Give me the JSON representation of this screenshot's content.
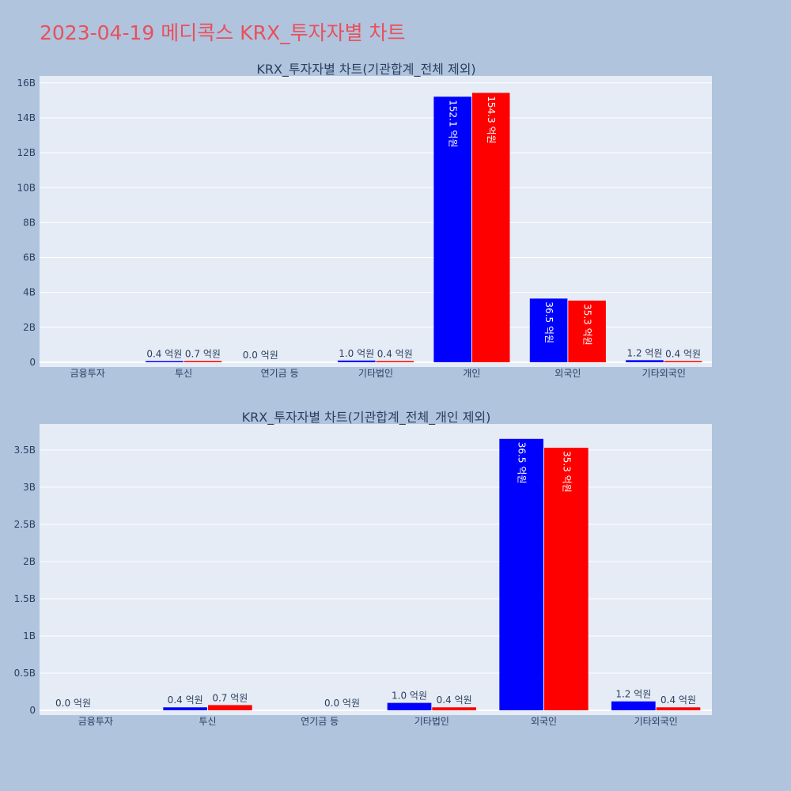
{
  "page_title": "2023-04-19 메디콕스 KRX_투자자별 차트",
  "colors": {
    "background": "#b0c4de",
    "plot_bg": "#e5ecf6",
    "title": "#e8505b",
    "series_a": "#0000ff",
    "series_b": "#ff0000"
  },
  "chart_data": [
    {
      "type": "bar",
      "title": "KRX_투자자별 차트(기관합계_전체 제외)",
      "categories": [
        "금융투자",
        "투신",
        "연기금 등",
        "기타법인",
        "개인",
        "외국인",
        "기타외국인"
      ],
      "series": [
        {
          "color": "#0000ff",
          "values": [
            0,
            40000000,
            0,
            100000000,
            15210000000,
            3650000000,
            120000000
          ],
          "labels": [
            "",
            "0.4 억원",
            "0.0 억원",
            "1.0 억원",
            "152.1 억원",
            "36.5 억원",
            "1.2 억원"
          ]
        },
        {
          "color": "#ff0000",
          "values": [
            0,
            70000000,
            0,
            40000000,
            15430000000,
            3530000000,
            40000000
          ],
          "labels": [
            "",
            "0.7 억원",
            "",
            "0.4 억원",
            "154.3 억원",
            "35.3 억원",
            "0.4 억원"
          ]
        }
      ],
      "ylim": [
        0,
        16400000000
      ],
      "yticks": [
        0,
        2000000000,
        4000000000,
        6000000000,
        8000000000,
        10000000000,
        12000000000,
        14000000000,
        16000000000
      ],
      "ytick_labels": [
        "0",
        "2B",
        "4B",
        "6B",
        "8B",
        "10B",
        "12B",
        "14B",
        "16B"
      ],
      "grid": true,
      "xlabel": "",
      "ylabel": ""
    },
    {
      "type": "bar",
      "title": "KRX_투자자별 차트(기관합계_전체_개인 제외)",
      "categories": [
        "금융투자",
        "투신",
        "연기금 등",
        "기타법인",
        "외국인",
        "기타외국인"
      ],
      "series": [
        {
          "color": "#0000ff",
          "values": [
            0,
            40000000,
            0,
            100000000,
            3650000000,
            120000000
          ],
          "labels": [
            "0.0 억원",
            "0.4 억원",
            "",
            "1.0 억원",
            "36.5 억원",
            "1.2 억원"
          ]
        },
        {
          "color": "#ff0000",
          "values": [
            0,
            70000000,
            0,
            40000000,
            3530000000,
            40000000
          ],
          "labels": [
            "",
            "0.7 억원",
            "0.0 억원",
            "0.4 억원",
            "35.3 억원",
            "0.4 억원"
          ]
        }
      ],
      "ylim": [
        0,
        3850000000
      ],
      "yticks": [
        0,
        500000000,
        1000000000,
        1500000000,
        2000000000,
        2500000000,
        3000000000,
        3500000000
      ],
      "ytick_labels": [
        "0",
        "0.5B",
        "1B",
        "1.5B",
        "2B",
        "2.5B",
        "3B",
        "3.5B"
      ],
      "grid": true,
      "xlabel": "",
      "ylabel": ""
    }
  ]
}
